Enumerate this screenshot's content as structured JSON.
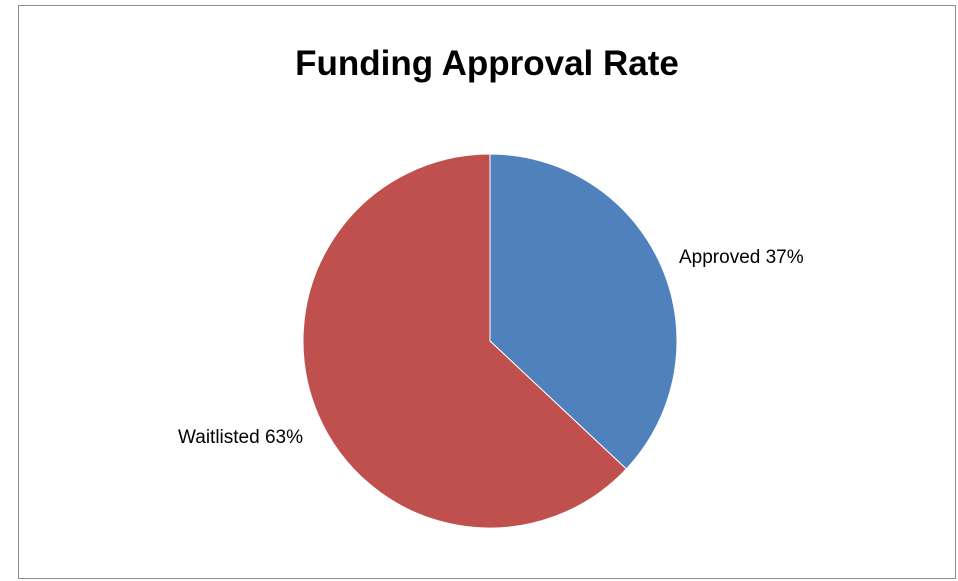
{
  "chart_data": {
    "type": "pie",
    "title": "Funding Approval Rate",
    "categories": [
      "Approved",
      "Waitlisted"
    ],
    "values": [
      37,
      63
    ],
    "labels": [
      "Approved 37%",
      "Waitlisted 63%"
    ],
    "colors": [
      "#4f81bd",
      "#c0504d"
    ],
    "start_angle_deg": 0,
    "direction": "clockwise",
    "legend": "none"
  }
}
